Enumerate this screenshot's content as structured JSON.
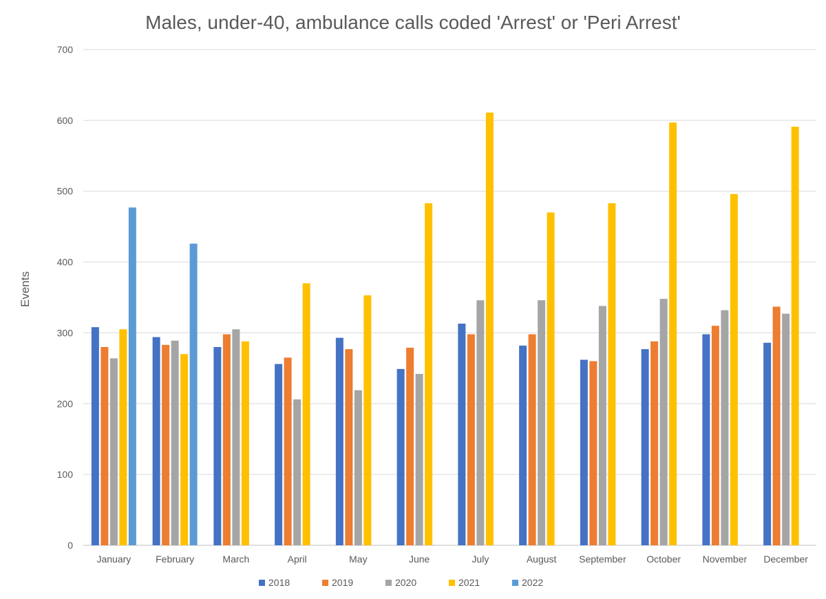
{
  "chart_data": {
    "type": "bar",
    "title": "Males, under-40, ambulance calls coded 'Arrest' or 'Peri Arrest'",
    "xlabel": "",
    "ylabel": "Events",
    "ylim": [
      0,
      700
    ],
    "yticks": [
      0,
      100,
      200,
      300,
      400,
      500,
      600,
      700
    ],
    "grid": true,
    "legend_position": "bottom",
    "categories": [
      "January",
      "February",
      "March",
      "April",
      "May",
      "June",
      "July",
      "August",
      "September",
      "October",
      "November",
      "December"
    ],
    "series": [
      {
        "name": "2018",
        "color": "#4472C4",
        "values": [
          308,
          294,
          280,
          256,
          293,
          249,
          313,
          282,
          262,
          277,
          298,
          286
        ]
      },
      {
        "name": "2019",
        "color": "#ED7D31",
        "values": [
          280,
          283,
          298,
          265,
          277,
          279,
          298,
          298,
          260,
          288,
          310,
          337
        ]
      },
      {
        "name": "2020",
        "color": "#A5A5A5",
        "values": [
          264,
          289,
          305,
          206,
          219,
          242,
          346,
          346,
          338,
          348,
          332,
          327
        ]
      },
      {
        "name": "2021",
        "color": "#FFC000",
        "values": [
          305,
          270,
          288,
          370,
          353,
          483,
          611,
          470,
          483,
          597,
          496,
          591
        ]
      },
      {
        "name": "2022",
        "color": "#5B9BD5",
        "values": [
          477,
          426,
          null,
          null,
          null,
          null,
          null,
          null,
          null,
          null,
          null,
          null
        ]
      }
    ]
  }
}
